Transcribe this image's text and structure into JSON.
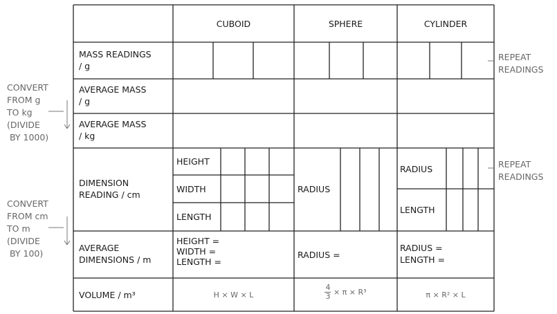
{
  "header": {
    "col1": "CUBOID",
    "col2": "SPHERE",
    "col3": "CYLINDER"
  },
  "rows": {
    "mass_readings": [
      "MASS READINGS",
      "/ g"
    ],
    "avg_mass_g": [
      "AVERAGE MASS",
      "/ g"
    ],
    "avg_mass_kg": [
      "AVERAGE MASS",
      "/ kg"
    ],
    "dimension_reading": [
      "DIMENSION",
      "READING / cm"
    ],
    "avg_dimensions": [
      "AVERAGE",
      "DIMENSIONS / m"
    ],
    "volume": "VOLUME / m³"
  },
  "cuboid": {
    "height": "HEIGHT",
    "width": "WIDTH",
    "length": "LENGTH",
    "avg": [
      "HEIGHT =",
      "WIDTH =",
      "LENGTH ="
    ],
    "volume": "H × W × L"
  },
  "sphere": {
    "radius": "RADIUS",
    "avg": "RADIUS =",
    "volume_num": "4",
    "volume_den": "3",
    "volume_rest": "× π × R³"
  },
  "cylinder": {
    "radius": "RADIUS",
    "length": "LENGTH",
    "avg": [
      "RADIUS =",
      "LENGTH ="
    ],
    "volume": "π × R² × L"
  },
  "annotations": {
    "repeat1": [
      "REPEAT",
      "READINGS"
    ],
    "repeat2": [
      "REPEAT",
      "READINGS"
    ],
    "convert_mass": [
      "CONVERT",
      "FROM g",
      "TO kg",
      "(DIVIDE",
      "BY 1000)"
    ],
    "convert_length": [
      "CONVERT",
      "FROM cm",
      "TO m",
      "(DIVIDE",
      "BY 100)"
    ]
  }
}
